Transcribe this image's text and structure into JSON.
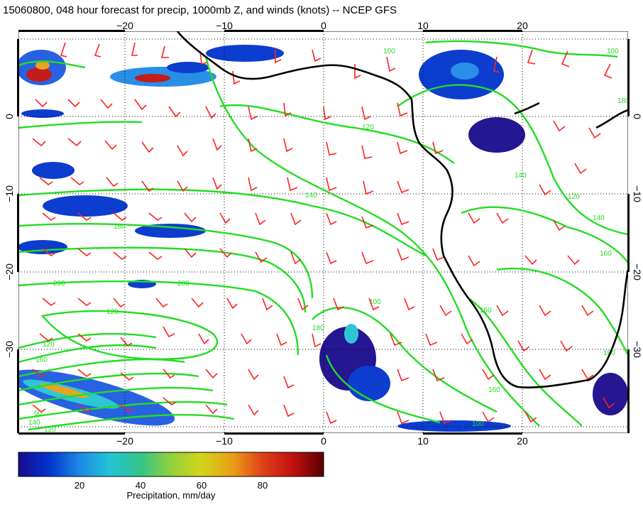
{
  "title": "15060800, 048 hour forecast for precip, 1000mb Z, and winds (knots) -- NCEP GFS",
  "map": {
    "lon_ticks": [
      "−20",
      "−10",
      "0",
      "10",
      "20"
    ],
    "lat_ticks": [
      "0",
      "−10",
      "−20",
      "−30"
    ],
    "lon_range": [
      -30,
      30
    ],
    "lat_range": [
      -40,
      11
    ],
    "grid_style": "dotted",
    "contour_color": "#22dd22",
    "wind_barb_color": "#ff2020",
    "coastline_color": "#000000",
    "contour_labels": [
      "100",
      "120",
      "140",
      "160",
      "180",
      "200",
      "120",
      "140",
      "160",
      "180",
      "120",
      "100",
      "140",
      "160",
      "180",
      "160",
      "200",
      "100",
      "100",
      "120",
      "160",
      "60",
      "140",
      "120",
      "100",
      "120",
      "140",
      "160",
      "180",
      "200"
    ]
  },
  "colorbar": {
    "ticks": [
      "20",
      "40",
      "60",
      "80"
    ],
    "label": "Precipitation, mm/day",
    "colors": [
      "#1a0a8c",
      "#0033cc",
      "#1e88e5",
      "#22c4d4",
      "#35c48a",
      "#8fd13c",
      "#d4d41a",
      "#e8a015",
      "#e0401a",
      "#c01010",
      "#5a0000"
    ]
  }
}
